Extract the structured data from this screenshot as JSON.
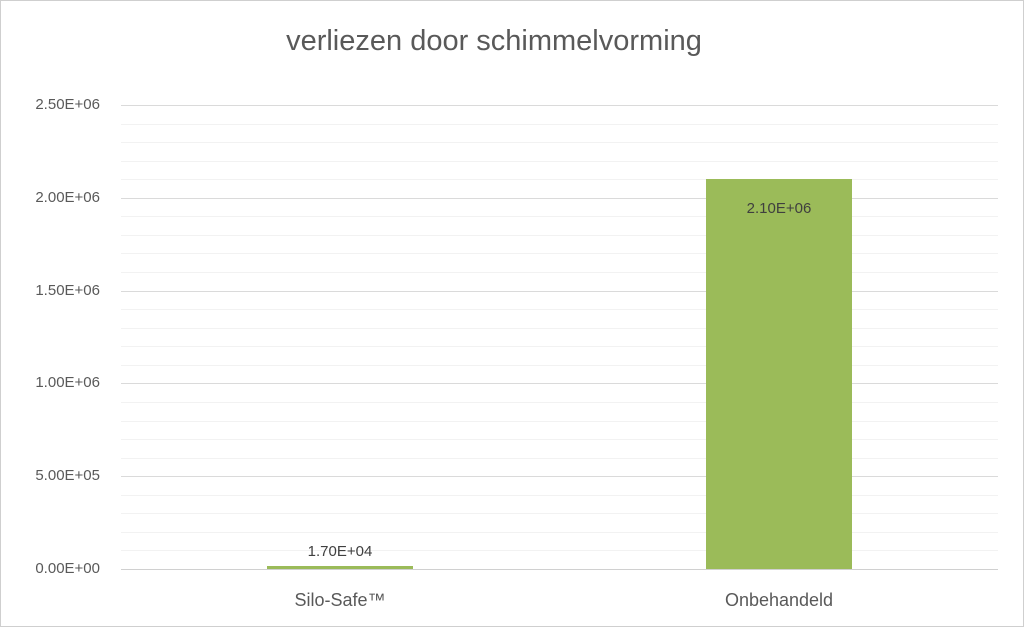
{
  "window": {
    "background": "#FFFFFF",
    "border_color": "#CFCFCF"
  },
  "chart_data": {
    "type": "bar",
    "title": "verliezen door schimmelvorming",
    "categories": [
      "Silo-Safe™",
      "Onbehandeld"
    ],
    "values": [
      17000,
      2100000
    ],
    "data_labels": [
      "1.70E+04",
      "2.10E+06"
    ],
    "xlabel": "",
    "ylabel": "",
    "ylim": [
      0,
      2500000
    ],
    "y_major_unit": 500000,
    "y_minor_unit": 100000,
    "y_tick_labels": [
      "0.00E+00",
      "5.00E+05",
      "1.00E+06",
      "1.50E+06",
      "2.00E+06",
      "2.50E+06"
    ],
    "legend": "none",
    "grid": {
      "major_horizontal": true,
      "minor_horizontal": true,
      "vertical": false
    },
    "colors": {
      "bar": "#9BBB59",
      "title_text": "#595959",
      "axis_text": "#595959",
      "data_label_text": "#3F3F3F",
      "major_gridline": "#DADADA",
      "minor_gridline": "#F2F2F2",
      "axis_line": "#D0D0D0"
    }
  }
}
